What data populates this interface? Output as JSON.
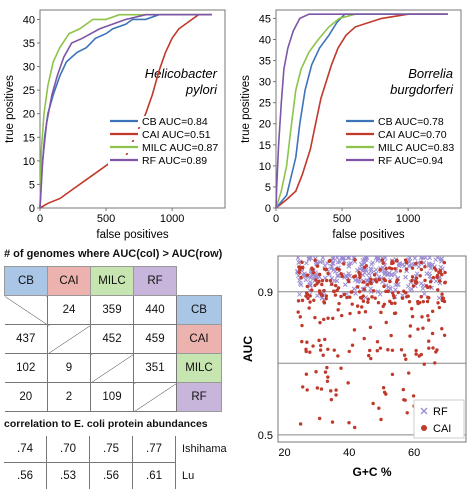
{
  "colors": {
    "CB": "#3d73b8",
    "CAI": "#c0392b",
    "MILC": "#8dc34a",
    "RF": "#7f55a8"
  },
  "chart_data": [
    {
      "type": "line",
      "title": "Helicobacter pylori",
      "xlabel": "false positives",
      "ylabel": "true positives",
      "xlim": [
        0,
        1400
      ],
      "ylim": [
        0,
        42
      ],
      "xticks": [
        "0",
        "500",
        "1000"
      ],
      "yticks": [
        "0",
        "5",
        "10",
        "15",
        "20",
        "25",
        "30",
        "35",
        "40"
      ],
      "series": [
        {
          "name": "CB AUC=0.84",
          "points": [
            [
              0,
              0
            ],
            [
              15,
              8
            ],
            [
              35,
              15
            ],
            [
              60,
              20
            ],
            [
              100,
              24
            ],
            [
              150,
              28
            ],
            [
              200,
              31
            ],
            [
              280,
              33
            ],
            [
              350,
              34
            ],
            [
              420,
              36
            ],
            [
              500,
              37
            ],
            [
              550,
              38
            ],
            [
              650,
              39
            ],
            [
              700,
              40
            ],
            [
              800,
              40
            ],
            [
              900,
              41
            ],
            [
              1000,
              41
            ],
            [
              1300,
              41
            ]
          ]
        },
        {
          "name": "CAI AUC=0.51",
          "points": [
            [
              0,
              0
            ],
            [
              60,
              1
            ],
            [
              150,
              2
            ],
            [
              250,
              4
            ],
            [
              350,
              6
            ],
            [
              450,
              8
            ],
            [
              550,
              10
            ],
            [
              650,
              11
            ],
            [
              700,
              14
            ],
            [
              750,
              17
            ],
            [
              800,
              20
            ],
            [
              850,
              24
            ],
            [
              900,
              29
            ],
            [
              950,
              33
            ],
            [
              1000,
              36
            ],
            [
              1050,
              38
            ],
            [
              1100,
              39
            ],
            [
              1150,
              40
            ],
            [
              1200,
              41
            ],
            [
              1300,
              41
            ]
          ]
        },
        {
          "name": "MILC AUC=0.87",
          "points": [
            [
              0,
              0
            ],
            [
              10,
              12
            ],
            [
              30,
              20
            ],
            [
              60,
              26
            ],
            [
              100,
              31
            ],
            [
              150,
              34
            ],
            [
              220,
              37
            ],
            [
              300,
              38
            ],
            [
              400,
              40
            ],
            [
              500,
              40
            ],
            [
              600,
              41
            ],
            [
              1300,
              41
            ]
          ]
        },
        {
          "name": "RF AUC=0.89",
          "points": [
            [
              0,
              0
            ],
            [
              20,
              10
            ],
            [
              50,
              18
            ],
            [
              90,
              24
            ],
            [
              130,
              28
            ],
            [
              180,
              32
            ],
            [
              240,
              35
            ],
            [
              320,
              36
            ],
            [
              450,
              38
            ],
            [
              550,
              39
            ],
            [
              650,
              40
            ],
            [
              800,
              41
            ],
            [
              1300,
              41
            ]
          ]
        }
      ]
    },
    {
      "type": "line",
      "title": "Borrelia burgdorferi",
      "xlabel": "false positives",
      "ylabel": "true positives",
      "xlim": [
        0,
        1400
      ],
      "ylim": [
        0,
        47
      ],
      "xticks": [
        "0",
        "500",
        "1000"
      ],
      "yticks": [
        "0",
        "5",
        "10",
        "15",
        "20",
        "25",
        "30",
        "35",
        "40",
        "45"
      ],
      "series": [
        {
          "name": "CB AUC=0.78",
          "points": [
            [
              0,
              0
            ],
            [
              80,
              3
            ],
            [
              150,
              12
            ],
            [
              180,
              20
            ],
            [
              220,
              28
            ],
            [
              270,
              34
            ],
            [
              330,
              38
            ],
            [
              400,
              41
            ],
            [
              460,
              44
            ],
            [
              520,
              46
            ],
            [
              600,
              46
            ],
            [
              800,
              46
            ],
            [
              1300,
              46
            ]
          ]
        },
        {
          "name": "CAI AUC=0.70",
          "points": [
            [
              0,
              0
            ],
            [
              80,
              2
            ],
            [
              150,
              4
            ],
            [
              200,
              8
            ],
            [
              260,
              14
            ],
            [
              300,
              20
            ],
            [
              340,
              26
            ],
            [
              380,
              30
            ],
            [
              420,
              34
            ],
            [
              470,
              38
            ],
            [
              530,
              41
            ],
            [
              600,
              43
            ],
            [
              700,
              44
            ],
            [
              800,
              45
            ],
            [
              1000,
              46
            ],
            [
              1300,
              46
            ]
          ]
        },
        {
          "name": "MILC AUC=0.83",
          "points": [
            [
              0,
              0
            ],
            [
              40,
              4
            ],
            [
              80,
              10
            ],
            [
              110,
              18
            ],
            [
              150,
              28
            ],
            [
              190,
              33
            ],
            [
              250,
              37
            ],
            [
              320,
              40
            ],
            [
              400,
              43
            ],
            [
              480,
              45
            ],
            [
              600,
              46
            ],
            [
              1300,
              46
            ]
          ]
        },
        {
          "name": "RF AUC=0.94",
          "points": [
            [
              0,
              0
            ],
            [
              5,
              5
            ],
            [
              20,
              15
            ],
            [
              40,
              25
            ],
            [
              60,
              33
            ],
            [
              90,
              38
            ],
            [
              130,
              42
            ],
            [
              180,
              45
            ],
            [
              250,
              46
            ],
            [
              1300,
              46
            ]
          ]
        }
      ]
    },
    {
      "type": "table",
      "title": "# of genomes where AUC(col) > AUC(row)",
      "columns": [
        "CB",
        "CAI",
        "MILC",
        "RF"
      ],
      "rows": [
        {
          "label": "CB",
          "values": [
            "",
            "24",
            "359",
            "440"
          ]
        },
        {
          "label": "CAI",
          "values": [
            "437",
            "",
            "452",
            "459"
          ]
        },
        {
          "label": "MILC",
          "values": [
            "102",
            "9",
            "",
            "351"
          ]
        },
        {
          "label": "RF",
          "values": [
            "20",
            "2",
            "109",
            ""
          ]
        }
      ]
    },
    {
      "type": "table",
      "title": "correlation to E. coli protein abundances",
      "columns": [
        "CB",
        "CAI",
        "MILC",
        "RF"
      ],
      "rows": [
        {
          "label": "Ishihama",
          "values": [
            ".74",
            ".70",
            ".75",
            ".77"
          ]
        },
        {
          "label": "Lu",
          "values": [
            ".56",
            ".53",
            ".56",
            ".61"
          ]
        }
      ]
    },
    {
      "type": "scatter",
      "xlabel": "G+C %",
      "ylabel": "AUC",
      "xlim": [
        18,
        76
      ],
      "ylim": [
        0.48,
        1.0
      ],
      "xticks": [
        "20",
        "40",
        "60"
      ],
      "yticks": [
        "0.5",
        "",
        "0.9"
      ],
      "legend_position": "bottom-right",
      "series": [
        {
          "name": "RF",
          "marker": "x"
        },
        {
          "name": "CAI",
          "marker": "dot"
        }
      ]
    }
  ]
}
